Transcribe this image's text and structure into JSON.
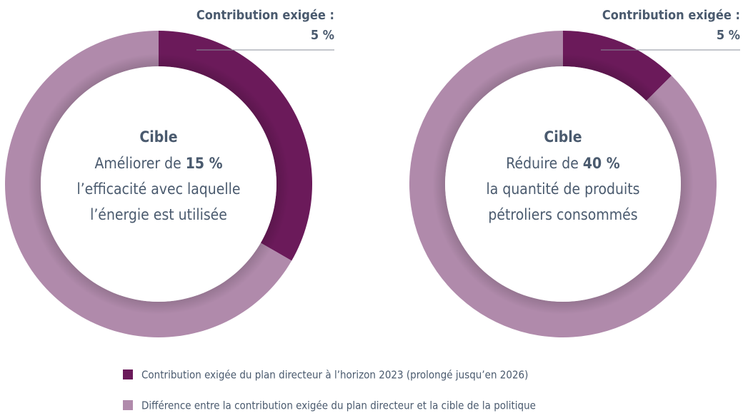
{
  "chart_data": [
    {
      "type": "donut",
      "values": [
        5,
        10
      ],
      "colors": [
        "#6b1a5a",
        "#b08aab"
      ],
      "annotation": "Contribution exigée :",
      "annotation_value": "5 %",
      "center_title": "Cible",
      "target_verb": "Améliorer de",
      "target": "15 %",
      "center_lines": [
        "l’efficacité avec laquelle",
        "l’énergie est utilisée"
      ]
    },
    {
      "type": "donut",
      "values": [
        5,
        35
      ],
      "colors": [
        "#6b1a5a",
        "#b08aab"
      ],
      "annotation": "Contribution exigée :",
      "annotation_value": "5 %",
      "center_title": "Cible",
      "target_verb": "Réduire de",
      "target": "40 %",
      "center_lines": [
        "la quantité de produits",
        "pétroliers consommés"
      ]
    }
  ],
  "legend": [
    "Contribution exigée du plan directeur à l’horizon 2023 (prolongé jusqu’en 2026)",
    "Différence entre la contribution exigée du plan directeur et la cible de la politique"
  ]
}
